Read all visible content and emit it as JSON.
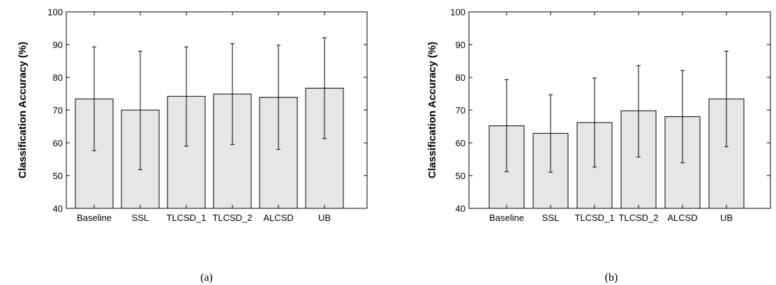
{
  "chart_data": [
    {
      "type": "bar",
      "panel_label": "(a)",
      "categories": [
        "Baseline",
        "SSL",
        "TLCSD_1",
        "TLCSD_2",
        "ALCSD",
        "UB"
      ],
      "values": [
        73.4,
        70.0,
        74.2,
        74.9,
        73.9,
        76.7
      ],
      "error_upper": [
        89.3,
        88.0,
        89.3,
        90.3,
        89.8,
        92.1
      ],
      "error_lower": [
        57.6,
        51.8,
        59.0,
        59.5,
        58.0,
        61.3
      ],
      "ylabel": "Classification Accuracy (%)",
      "ylim": [
        40,
        100
      ],
      "yticks": [
        40,
        50,
        60,
        70,
        80,
        90,
        100
      ],
      "grid": false
    },
    {
      "type": "bar",
      "panel_label": "(b)",
      "categories": [
        "Baseline",
        "SSL",
        "TLCSD_1",
        "TLCSD_2",
        "ALCSD",
        "UB"
      ],
      "values": [
        65.2,
        62.9,
        66.2,
        69.8,
        68.0,
        73.4
      ],
      "error_upper": [
        79.3,
        74.7,
        79.8,
        83.6,
        82.1,
        88.0
      ],
      "error_lower": [
        51.2,
        51.0,
        52.6,
        55.7,
        53.9,
        58.8
      ],
      "ylabel": "Classification Accuracy (%)",
      "ylim": [
        40,
        100
      ],
      "yticks": [
        40,
        50,
        60,
        70,
        80,
        90,
        100
      ],
      "grid": false
    }
  ]
}
